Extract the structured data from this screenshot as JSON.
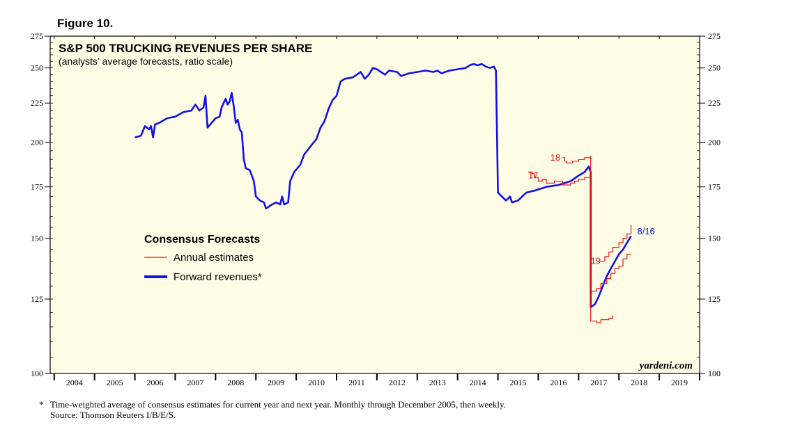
{
  "figure_label": "Figure 10.",
  "colors": {
    "plot_bg": "#fffde6",
    "forward": "#1010ee",
    "annual": "#ee1111",
    "axis": "#000000"
  },
  "chart_data": {
    "type": "line",
    "title": "S&P 500 TRUCKING REVENUES PER SHARE",
    "subtitle": "(analysts’ average forecasts, ratio scale)",
    "scale": "log",
    "ylim": [
      100,
      275
    ],
    "xlim": [
      2003.9,
      2020.0
    ],
    "y_ticks": [
      100,
      125,
      150,
      175,
      200,
      225,
      250,
      275
    ],
    "x_tick_labels": [
      "2004",
      "2005",
      "2006",
      "2007",
      "2008",
      "2009",
      "2010",
      "2011",
      "2012",
      "2013",
      "2014",
      "2015",
      "2016",
      "2017",
      "2018",
      "2019"
    ],
    "legend": {
      "title": "Consensus Forecasts",
      "items": [
        {
          "label": "Annual estimates",
          "series": "annual"
        },
        {
          "label": "Forward revenues*",
          "series": "forward"
        }
      ]
    },
    "series": [
      {
        "name": "Forward revenues",
        "key": "forward",
        "points": [
          [
            2006.0,
            203
          ],
          [
            2006.15,
            204
          ],
          [
            2006.25,
            210
          ],
          [
            2006.35,
            208
          ],
          [
            2006.4,
            210
          ],
          [
            2006.45,
            203
          ],
          [
            2006.5,
            211
          ],
          [
            2006.6,
            212
          ],
          [
            2006.8,
            215
          ],
          [
            2007.0,
            216
          ],
          [
            2007.2,
            219
          ],
          [
            2007.4,
            220
          ],
          [
            2007.5,
            224
          ],
          [
            2007.6,
            220
          ],
          [
            2007.7,
            222
          ],
          [
            2007.75,
            230
          ],
          [
            2007.8,
            209
          ],
          [
            2007.9,
            212
          ],
          [
            2008.0,
            215
          ],
          [
            2008.1,
            216
          ],
          [
            2008.15,
            222
          ],
          [
            2008.25,
            228
          ],
          [
            2008.3,
            224
          ],
          [
            2008.35,
            226
          ],
          [
            2008.4,
            232
          ],
          [
            2008.45,
            223
          ],
          [
            2008.5,
            212
          ],
          [
            2008.55,
            214
          ],
          [
            2008.6,
            208
          ],
          [
            2008.65,
            206
          ],
          [
            2008.7,
            190
          ],
          [
            2008.75,
            185
          ],
          [
            2008.85,
            184
          ],
          [
            2008.95,
            178
          ],
          [
            2009.0,
            170
          ],
          [
            2009.1,
            168
          ],
          [
            2009.2,
            167
          ],
          [
            2009.25,
            164
          ],
          [
            2009.4,
            166
          ],
          [
            2009.5,
            167
          ],
          [
            2009.6,
            166
          ],
          [
            2009.65,
            170
          ],
          [
            2009.7,
            166
          ],
          [
            2009.8,
            167
          ],
          [
            2009.85,
            178
          ],
          [
            2009.95,
            183
          ],
          [
            2010.1,
            187
          ],
          [
            2010.2,
            193
          ],
          [
            2010.3,
            196
          ],
          [
            2010.4,
            199
          ],
          [
            2010.5,
            202
          ],
          [
            2010.6,
            209
          ],
          [
            2010.7,
            213
          ],
          [
            2010.8,
            221
          ],
          [
            2010.9,
            227
          ],
          [
            2011.0,
            230
          ],
          [
            2011.1,
            240
          ],
          [
            2011.2,
            242
          ],
          [
            2011.4,
            243
          ],
          [
            2011.5,
            245
          ],
          [
            2011.6,
            247
          ],
          [
            2011.7,
            242
          ],
          [
            2011.8,
            245
          ],
          [
            2011.9,
            250
          ],
          [
            2012.0,
            249
          ],
          [
            2012.1,
            247
          ],
          [
            2012.2,
            245
          ],
          [
            2012.3,
            248
          ],
          [
            2012.5,
            247
          ],
          [
            2012.6,
            244
          ],
          [
            2012.8,
            246
          ],
          [
            2013.0,
            247
          ],
          [
            2013.2,
            248
          ],
          [
            2013.4,
            247
          ],
          [
            2013.5,
            248
          ],
          [
            2013.6,
            246
          ],
          [
            2013.8,
            248
          ],
          [
            2014.0,
            249
          ],
          [
            2014.2,
            250
          ],
          [
            2014.3,
            252
          ],
          [
            2014.4,
            253
          ],
          [
            2014.5,
            252
          ],
          [
            2014.6,
            253
          ],
          [
            2014.7,
            251
          ],
          [
            2014.8,
            250
          ],
          [
            2014.9,
            251
          ],
          [
            2014.95,
            248
          ],
          [
            2015.0,
            172
          ],
          [
            2015.2,
            168
          ],
          [
            2015.3,
            170
          ],
          [
            2015.35,
            167
          ],
          [
            2015.5,
            168
          ],
          [
            2015.7,
            172
          ],
          [
            2015.9,
            173
          ],
          [
            2016.2,
            175
          ],
          [
            2016.5,
            176
          ],
          [
            2016.8,
            178
          ],
          [
            2017.0,
            181
          ],
          [
            2017.15,
            183
          ],
          [
            2017.25,
            186
          ],
          [
            2017.3,
            183
          ],
          [
            2017.3,
            122
          ],
          [
            2017.4,
            123
          ],
          [
            2017.5,
            126
          ],
          [
            2017.6,
            130
          ],
          [
            2017.7,
            134
          ],
          [
            2017.8,
            137
          ],
          [
            2017.9,
            140
          ],
          [
            2018.0,
            143
          ],
          [
            2018.1,
            145
          ],
          [
            2018.2,
            148
          ],
          [
            2018.3,
            151
          ]
        ]
      },
      {
        "name": "Annual estimates 17",
        "key": "annual",
        "label": "17",
        "label_at": [
          2015.75,
          181
        ],
        "points": [
          [
            2015.75,
            183
          ],
          [
            2015.85,
            182
          ],
          [
            2015.9,
            180
          ],
          [
            2016.0,
            178
          ],
          [
            2016.1,
            179
          ],
          [
            2016.2,
            177
          ],
          [
            2016.4,
            178
          ],
          [
            2016.6,
            176
          ],
          [
            2016.8,
            177
          ],
          [
            2016.9,
            178
          ],
          [
            2017.0,
            179
          ],
          [
            2017.15,
            180
          ],
          [
            2017.3,
            180
          ],
          [
            2017.3,
            117
          ],
          [
            2017.45,
            116.5
          ],
          [
            2017.55,
            117.5
          ],
          [
            2017.75,
            118
          ],
          [
            2017.85,
            119
          ]
        ]
      },
      {
        "name": "Annual estimates 18",
        "key": "annual",
        "label": "18",
        "label_at": [
          2016.3,
          191
        ],
        "points": [
          [
            2016.6,
            191
          ],
          [
            2016.65,
            189
          ],
          [
            2016.7,
            188
          ],
          [
            2016.85,
            189
          ],
          [
            2017.0,
            190
          ],
          [
            2017.15,
            191
          ],
          [
            2017.3,
            192
          ],
          [
            2017.3,
            128
          ],
          [
            2017.45,
            129
          ],
          [
            2017.55,
            131
          ],
          [
            2017.7,
            133
          ],
          [
            2017.8,
            135
          ],
          [
            2017.9,
            137
          ],
          [
            2018.0,
            138
          ],
          [
            2018.1,
            141
          ],
          [
            2018.2,
            143
          ],
          [
            2018.3,
            143
          ]
        ]
      },
      {
        "name": "Annual estimates 19",
        "key": "annual",
        "label": "19",
        "label_at": [
          2017.3,
          140
        ],
        "points": [
          [
            2017.55,
            140
          ],
          [
            2017.65,
            142
          ],
          [
            2017.75,
            144
          ],
          [
            2017.85,
            146
          ],
          [
            2018.0,
            148
          ],
          [
            2018.1,
            150
          ],
          [
            2018.2,
            152
          ],
          [
            2018.3,
            156
          ]
        ]
      }
    ],
    "annotations": [
      {
        "text": "8/16",
        "at": [
          2018.35,
          153
        ]
      }
    ],
    "watermark": "yardeni.com"
  },
  "footnote": {
    "marker": "*",
    "text": "Time-weighted average of consensus estimates for current year and next year. Monthly through December 2005, then weekly.",
    "source": "Source: Thomson Reuters I/B/E/S."
  }
}
